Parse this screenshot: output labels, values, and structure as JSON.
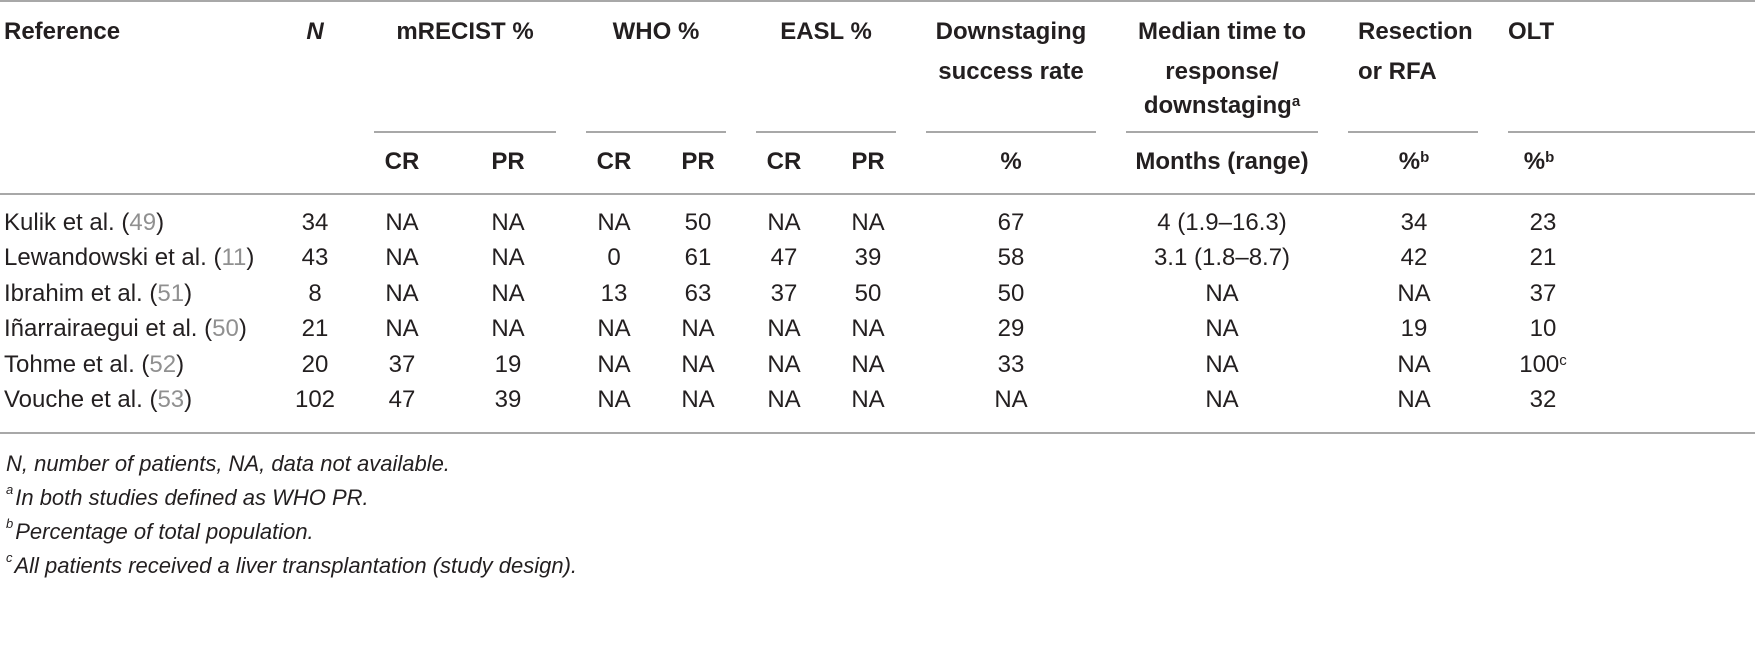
{
  "header": {
    "reference": "Reference",
    "n": "N",
    "mrecist": "mRECIST %",
    "who": "WHO %",
    "easl": "EASL %",
    "downstaging_l1": "Downstaging",
    "downstaging_l2": "success rate",
    "median_l1": "Median time to",
    "median_l2": "response/",
    "median_l3": "downstaging",
    "median_sup": "a",
    "resection_l1": "Resection",
    "resection_l2": "or RFA",
    "olt": "OLT",
    "cr": "CR",
    "pr": "PR",
    "pct": "%",
    "months_range": "Months (range)",
    "pct_b": "%",
    "sup_b": "b"
  },
  "rows": [
    {
      "author": "Kulik et al. (",
      "ref": "49",
      "close": ")",
      "n": "34",
      "m_cr": "NA",
      "m_pr": "NA",
      "w_cr": "NA",
      "w_pr": "50",
      "e_cr": "NA",
      "e_pr": "NA",
      "down": "67",
      "median": "4 (1.9–16.3)",
      "res": "34",
      "olt": "23",
      "olt_sup": ""
    },
    {
      "author": "Lewandowski et al. (",
      "ref": "11",
      "close": ")",
      "n": "43",
      "m_cr": "NA",
      "m_pr": "NA",
      "w_cr": "0",
      "w_pr": "61",
      "e_cr": "47",
      "e_pr": "39",
      "down": "58",
      "median": "3.1 (1.8–8.7)",
      "res": "42",
      "olt": "21",
      "olt_sup": ""
    },
    {
      "author": "Ibrahim et al. (",
      "ref": "51",
      "close": ")",
      "n": "8",
      "m_cr": "NA",
      "m_pr": "NA",
      "w_cr": "13",
      "w_pr": "63",
      "e_cr": "37",
      "e_pr": "50",
      "down": "50",
      "median": "NA",
      "res": "NA",
      "olt": "37",
      "olt_sup": ""
    },
    {
      "author": "Iñarrairaegui et al. (",
      "ref": "50",
      "close": ")",
      "n": "21",
      "m_cr": "NA",
      "m_pr": "NA",
      "w_cr": "NA",
      "w_pr": "NA",
      "e_cr": "NA",
      "e_pr": "NA",
      "down": "29",
      "median": "NA",
      "res": "19",
      "olt": "10",
      "olt_sup": ""
    },
    {
      "author": "Tohme et al. (",
      "ref": "52",
      "close": ")",
      "n": "20",
      "m_cr": "37",
      "m_pr": "19",
      "w_cr": "NA",
      "w_pr": "NA",
      "e_cr": "NA",
      "e_pr": "NA",
      "down": "33",
      "median": "NA",
      "res": "NA",
      "olt": "100",
      "olt_sup": "c"
    },
    {
      "author": "Vouche et al. (",
      "ref": "53",
      "close": ")",
      "n": "102",
      "m_cr": "47",
      "m_pr": "39",
      "w_cr": "NA",
      "w_pr": "NA",
      "e_cr": "NA",
      "e_pr": "NA",
      "down": "NA",
      "median": "NA",
      "res": "NA",
      "olt": "32",
      "olt_sup": ""
    }
  ],
  "footnotes": [
    {
      "sup": "",
      "text": "N, number of patients, NA, data not available."
    },
    {
      "sup": "a",
      "text": "In both studies defined as WHO PR."
    },
    {
      "sup": "b",
      "text": "Percentage of total population."
    },
    {
      "sup": "c",
      "text": "All patients received a liver transplantation (study design)."
    }
  ]
}
